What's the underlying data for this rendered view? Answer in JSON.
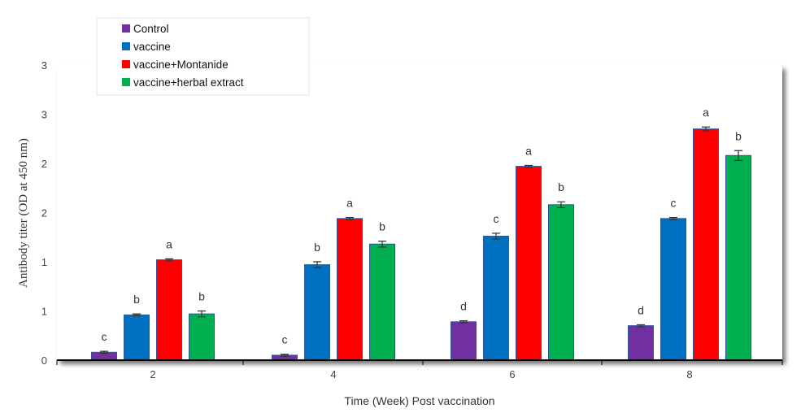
{
  "colors": {
    "Control": "#7030a0",
    "vaccine": "#0070c0",
    "vaccine+Montanide": "#ff0000",
    "vaccine+herbal extract": "#00b050",
    "bar_border": "#2f5597",
    "axis": "#000000",
    "shadow": "#9a9a9a"
  },
  "chart_data": {
    "type": "bar",
    "title": "",
    "xlabel": "Time (Week) Post vaccination",
    "ylabel": "Antibody titer (OD at 450 nm)",
    "ylim": [
      0,
      3
    ],
    "y_ticks": [
      0,
      0.5,
      1,
      1.5,
      2,
      2.5,
      3
    ],
    "y_tick_labels": [
      "0",
      "1",
      "1",
      "2",
      "2",
      "3",
      "3"
    ],
    "categories": [
      "2",
      "4",
      "6",
      "8"
    ],
    "grid": false,
    "legend_position": "top-left",
    "series": [
      {
        "name": "Control",
        "values": [
          0.08,
          0.05,
          0.39,
          0.35
        ],
        "errors": [
          0.01,
          0.01,
          0.01,
          0.01
        ],
        "sig": [
          "c",
          "c",
          "d",
          "d"
        ]
      },
      {
        "name": "vaccine",
        "values": [
          0.46,
          0.97,
          1.26,
          1.44
        ],
        "errors": [
          0.01,
          0.03,
          0.03,
          0.01
        ],
        "sig": [
          "b",
          "b",
          "c",
          "c"
        ]
      },
      {
        "name": "vaccine+Montanide",
        "values": [
          1.02,
          1.44,
          1.97,
          2.35
        ],
        "errors": [
          0.01,
          0.01,
          0.01,
          0.02
        ],
        "sig": [
          "a",
          "a",
          "a",
          "a"
        ]
      },
      {
        "name": "vaccine+herbal extract",
        "values": [
          0.47,
          1.18,
          1.58,
          2.08
        ],
        "errors": [
          0.03,
          0.03,
          0.03,
          0.05
        ],
        "sig": [
          "b",
          "b",
          "b",
          "b"
        ]
      }
    ]
  }
}
